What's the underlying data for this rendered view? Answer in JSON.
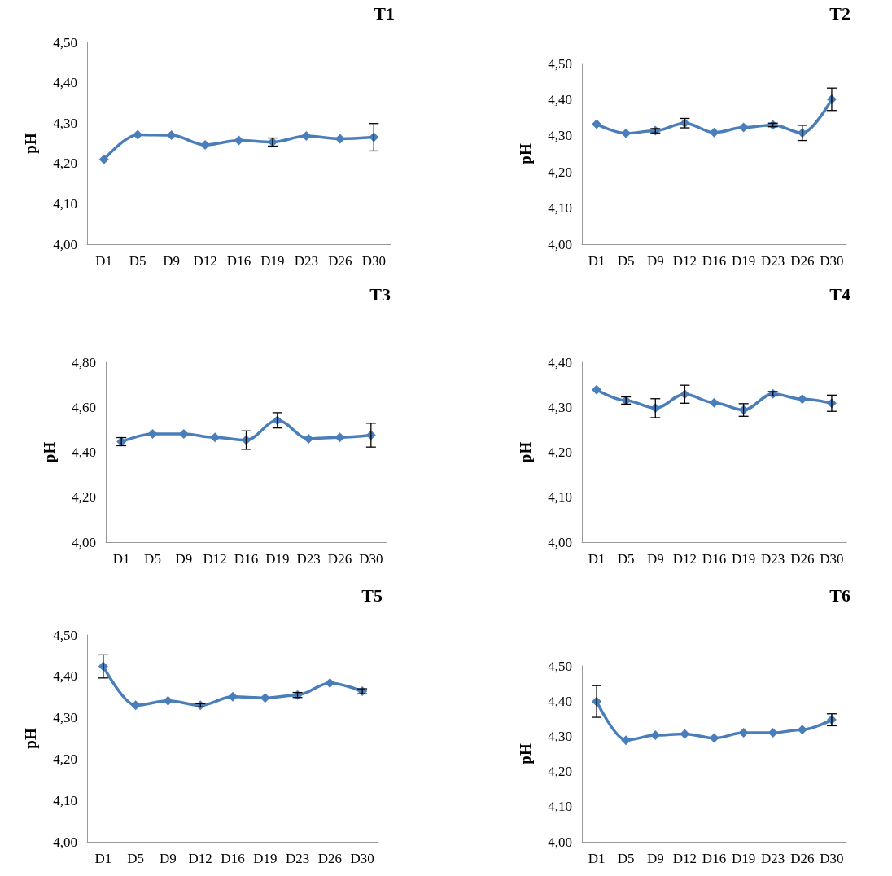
{
  "chart_data": [
    {
      "type": "line",
      "title": "T1",
      "ylabel": "pH",
      "categories": [
        "D1",
        "D5",
        "D9",
        "D12",
        "D16",
        "D19",
        "D23",
        "D26",
        "D30"
      ],
      "series": [
        {
          "color": "#4a7ebb",
          "values": [
            4.21,
            4.271,
            4.27,
            4.246,
            4.257,
            4.253,
            4.268,
            4.261,
            4.265
          ],
          "errors": [
            null,
            null,
            null,
            null,
            null,
            0.01,
            null,
            null,
            0.034
          ]
        }
      ],
      "ylim": [
        4.0,
        4.5
      ],
      "yticks": [
        {
          "value": 4.0,
          "label": "4,00"
        },
        {
          "value": 4.1,
          "label": "4,10"
        },
        {
          "value": 4.2,
          "label": "4,20"
        },
        {
          "value": 4.3,
          "label": "4,30"
        },
        {
          "value": 4.4,
          "label": "4,40"
        },
        {
          "value": 4.5,
          "label": "4,50"
        }
      ],
      "grid": false,
      "marker": "diamond",
      "line_style": "solid"
    },
    {
      "type": "line",
      "title": "T2",
      "ylabel": "pH",
      "categories": [
        "D1",
        "D5",
        "D9",
        "D12",
        "D16",
        "D19",
        "D23",
        "D26",
        "D30"
      ],
      "series": [
        {
          "color": "#4a7ebb",
          "values": [
            4.332,
            4.307,
            4.314,
            4.335,
            4.309,
            4.323,
            4.33,
            4.308,
            4.401
          ],
          "errors": [
            null,
            null,
            0.006,
            0.013,
            null,
            null,
            0.005,
            0.021,
            0.031
          ]
        }
      ],
      "ylim": [
        4.0,
        4.5
      ],
      "yticks": [
        {
          "value": 4.0,
          "label": "4,00"
        },
        {
          "value": 4.1,
          "label": "4,10"
        },
        {
          "value": 4.2,
          "label": "4,20"
        },
        {
          "value": 4.3,
          "label": "4,30"
        },
        {
          "value": 4.4,
          "label": "4,40"
        },
        {
          "value": 4.5,
          "label": "4,50"
        }
      ],
      "grid": false,
      "marker": "diamond",
      "line_style": "solid"
    },
    {
      "type": "line",
      "title": "T3",
      "ylabel": "pH",
      "categories": [
        "D1",
        "D5",
        "D9",
        "D12",
        "D16",
        "D19",
        "D23",
        "D26",
        "D30"
      ],
      "series": [
        {
          "color": "#4a7ebb",
          "values": [
            4.447,
            4.481,
            4.481,
            4.466,
            4.454,
            4.542,
            4.46,
            4.466,
            4.476
          ],
          "errors": [
            0.018,
            null,
            null,
            null,
            0.041,
            0.034,
            null,
            null,
            0.053
          ]
        }
      ],
      "ylim": [
        4.0,
        4.8
      ],
      "yticks": [
        {
          "value": 4.0,
          "label": "4,00"
        },
        {
          "value": 4.2,
          "label": "4,20"
        },
        {
          "value": 4.4,
          "label": "4,40"
        },
        {
          "value": 4.6,
          "label": "4,60"
        },
        {
          "value": 4.8,
          "label": "4,80"
        }
      ],
      "grid": false,
      "marker": "diamond",
      "line_style": "solid"
    },
    {
      "type": "line",
      "title": "T4",
      "ylabel": "pH",
      "categories": [
        "D1",
        "D5",
        "D9",
        "D12",
        "D16",
        "D19",
        "D23",
        "D26",
        "D30"
      ],
      "series": [
        {
          "color": "#4a7ebb",
          "values": [
            4.339,
            4.315,
            4.298,
            4.329,
            4.31,
            4.294,
            4.33,
            4.318,
            4.309
          ],
          "errors": [
            null,
            0.008,
            0.021,
            0.02,
            null,
            0.014,
            0.005,
            null,
            0.018
          ]
        }
      ],
      "ylim": [
        4.0,
        4.4
      ],
      "yticks": [
        {
          "value": 4.0,
          "label": "4,00"
        },
        {
          "value": 4.1,
          "label": "4,10"
        },
        {
          "value": 4.2,
          "label": "4,20"
        },
        {
          "value": 4.3,
          "label": "4,30"
        },
        {
          "value": 4.4,
          "label": "4,40"
        }
      ],
      "grid": false,
      "marker": "diamond",
      "line_style": "solid"
    },
    {
      "type": "line",
      "title": "T5",
      "ylabel": "pH",
      "categories": [
        "D1",
        "D5",
        "D9",
        "D12",
        "D16",
        "D19",
        "D23",
        "D26",
        "D30"
      ],
      "series": [
        {
          "color": "#4a7ebb",
          "values": [
            4.424,
            4.33,
            4.341,
            4.33,
            4.351,
            4.348,
            4.355,
            4.384,
            4.364
          ],
          "errors": [
            0.028,
            null,
            null,
            0.004,
            null,
            null,
            0.006,
            null,
            0.006
          ]
        }
      ],
      "ylim": [
        4.0,
        4.5
      ],
      "yticks": [
        {
          "value": 4.0,
          "label": "4,00"
        },
        {
          "value": 4.1,
          "label": "4,10"
        },
        {
          "value": 4.2,
          "label": "4,20"
        },
        {
          "value": 4.3,
          "label": "4,30"
        },
        {
          "value": 4.4,
          "label": "4,40"
        },
        {
          "value": 4.5,
          "label": "4,50"
        }
      ],
      "grid": false,
      "marker": "diamond",
      "line_style": "solid"
    },
    {
      "type": "line",
      "title": "T6",
      "ylabel": "pH",
      "categories": [
        "D1",
        "D5",
        "D9",
        "D12",
        "D16",
        "D19",
        "D23",
        "D26",
        "D30"
      ],
      "series": [
        {
          "color": "#4a7ebb",
          "values": [
            4.399,
            4.289,
            4.303,
            4.307,
            4.295,
            4.31,
            4.31,
            4.319,
            4.347
          ],
          "errors": [
            0.045,
            null,
            null,
            null,
            null,
            null,
            null,
            null,
            0.017
          ]
        }
      ],
      "ylim": [
        4.0,
        4.5
      ],
      "yticks": [
        {
          "value": 4.0,
          "label": "4,00"
        },
        {
          "value": 4.1,
          "label": "4,10"
        },
        {
          "value": 4.2,
          "label": "4,20"
        },
        {
          "value": 4.3,
          "label": "4,30"
        },
        {
          "value": 4.4,
          "label": "4,40"
        },
        {
          "value": 4.5,
          "label": "4,50"
        }
      ],
      "grid": false,
      "marker": "diamond",
      "line_style": "solid"
    }
  ]
}
